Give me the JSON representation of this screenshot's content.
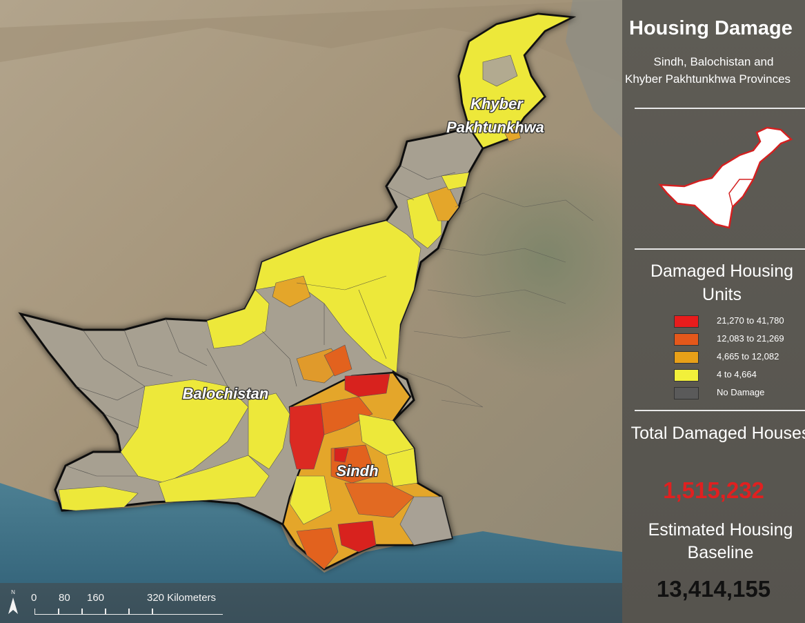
{
  "map": {
    "provinces": [
      {
        "name": "Khyber",
        "label_line2": "Pakhtunkhwa"
      },
      {
        "name": "Balochistan"
      },
      {
        "name": "Sindh"
      }
    ],
    "colors": {
      "ocean": "#3f6f86",
      "terrain": "#a69780",
      "no_damage": "#a8a195",
      "low": "#eee83a",
      "mid": "#e8a028",
      "high": "#e2621e",
      "very_high": "#d8221e"
    }
  },
  "scale_bar": {
    "ticks": [
      "0",
      "80",
      "160",
      "320 Kilometers"
    ],
    "north_label": "N"
  },
  "panel": {
    "title": "Housing Damage",
    "subtitle_line1": "Sindh, Balochistan and",
    "subtitle_line2": "Khyber Pakhtunkhwa Provinces",
    "legend": {
      "title": "Damaged Housing Units",
      "items": [
        {
          "label": "21,270 to 41,780",
          "color": "#e81c1c"
        },
        {
          "label": "12,083 to 21,269",
          "color": "#e4581b"
        },
        {
          "label": "4,665 to 12,082",
          "color": "#e8a018"
        },
        {
          "label": "4 to 4,664",
          "color": "#f2f03a"
        },
        {
          "label": "No Damage",
          "color": "#5a5a5a"
        }
      ]
    },
    "total_label": "Total Damaged Houses",
    "total_value": "1,515,232",
    "baseline_label": "Estimated Housing Baseline",
    "baseline_value": "13,414,155"
  }
}
